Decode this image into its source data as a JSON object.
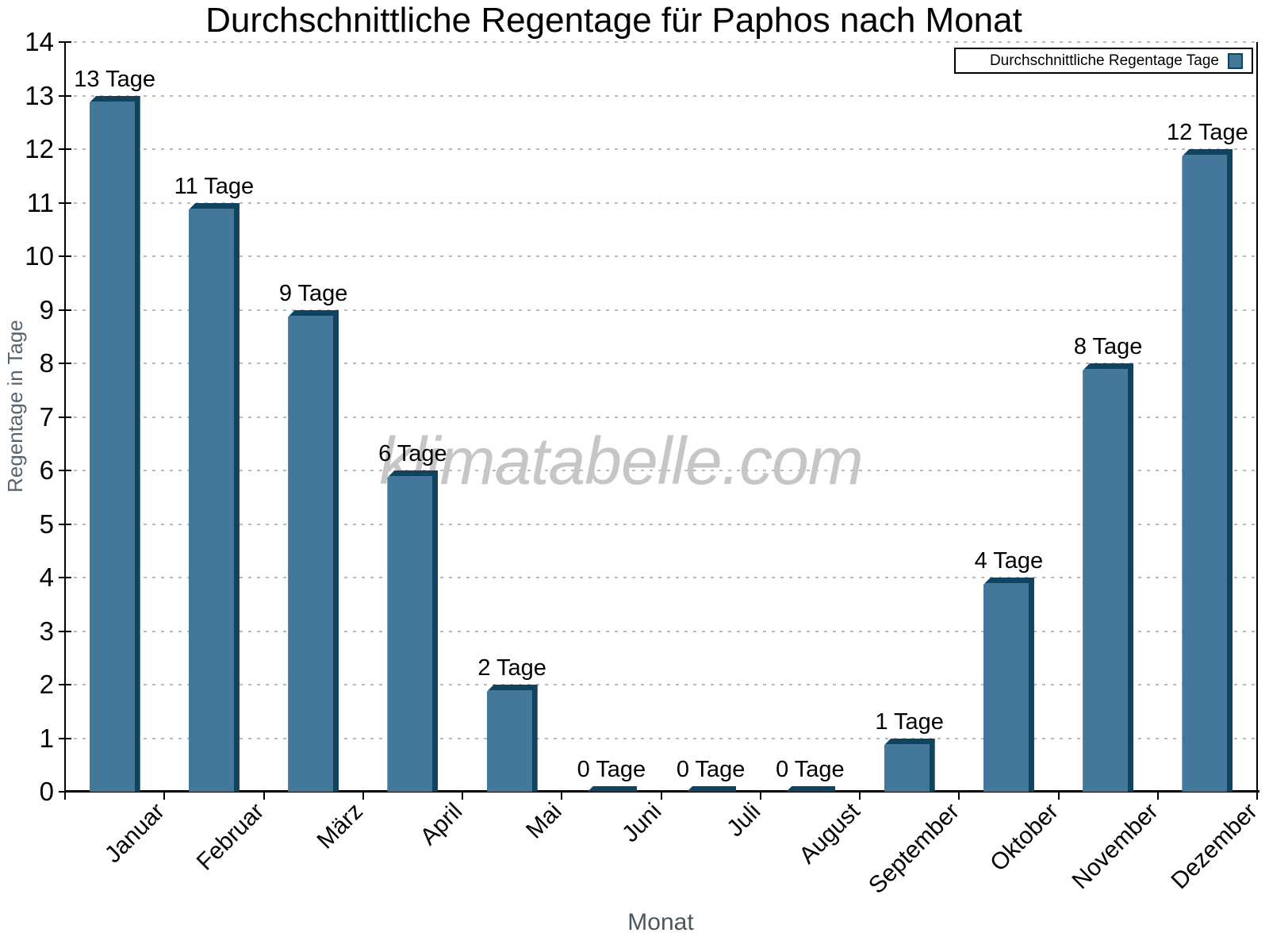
{
  "title": "Durchschnittliche Regentage für Paphos nach Monat",
  "watermark": "klimatabelle.com",
  "legend": {
    "label": "Durchschnittliche Regentage Tage"
  },
  "axes": {
    "xlabel": "Monat",
    "ylabel": "Regentage in Tage"
  },
  "colors": {
    "bar_body": "#44789B",
    "bar_dark": "#11425E",
    "grid": "#b9b9b9",
    "axis": "#000000",
    "axis_title": "#4c565f",
    "watermark": "#c6c6c6"
  },
  "chart_data": {
    "type": "bar",
    "title": "Durchschnittliche Regentage für Paphos nach Monat",
    "categories": [
      "Januar",
      "Februar",
      "März",
      "April",
      "Mai",
      "Juni",
      "Juli",
      "August",
      "September",
      "Oktober",
      "November",
      "Dezember"
    ],
    "values": [
      13,
      11,
      9,
      6,
      2,
      0,
      0,
      0,
      1,
      4,
      8,
      12
    ],
    "bar_labels": [
      "13 Tage",
      "11 Tage",
      "9 Tage",
      "6 Tage",
      "2 Tage",
      "0 Tage",
      "0 Tage",
      "0 Tage",
      "1 Tage",
      "4 Tage",
      "8 Tage",
      "12 Tage"
    ],
    "xlabel": "Monat",
    "ylabel": "Regentage in Tage",
    "ylim": [
      0,
      14
    ],
    "ytick_step": 1,
    "yticks": [
      0,
      1,
      2,
      3,
      4,
      5,
      6,
      7,
      8,
      9,
      10,
      11,
      12,
      13,
      14
    ],
    "grid": "horizontal-dotted",
    "legend_entry": "Durchschnittliche Regentage Tage",
    "legend_position": "top-right",
    "bar_color": "#44789B",
    "bar_edge_color": "#11425E"
  }
}
